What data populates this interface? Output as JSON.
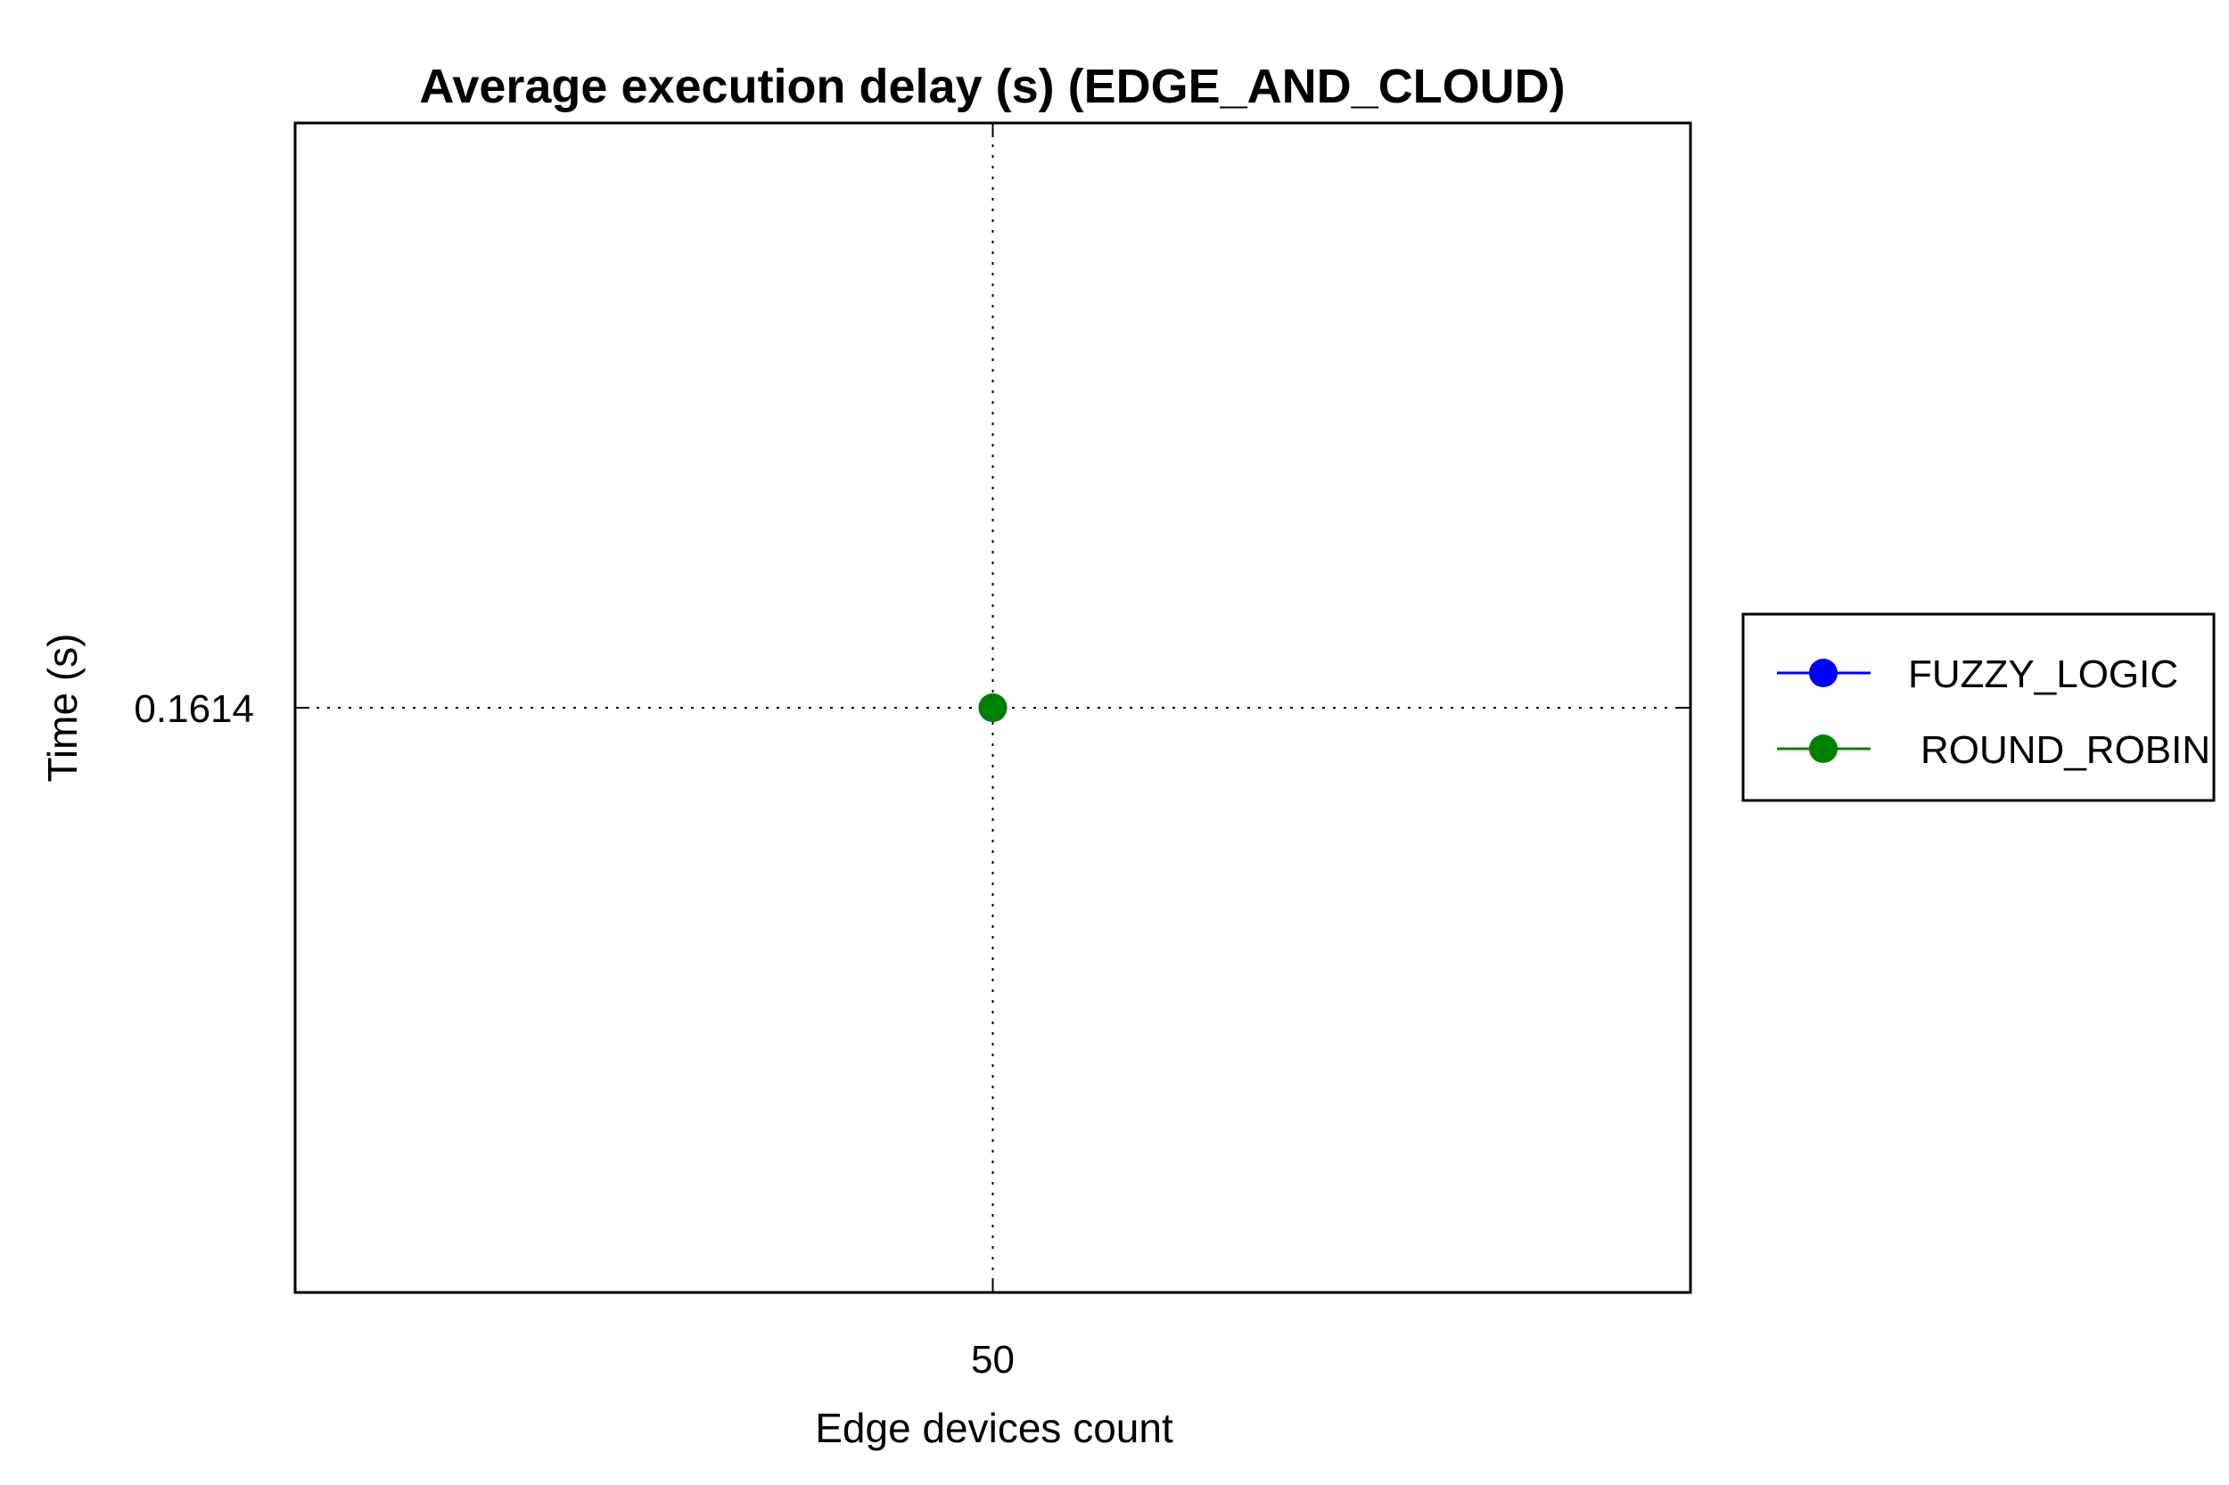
{
  "chart_data": {
    "type": "line",
    "title": "Average execution delay (s) (EDGE_AND_CLOUD)",
    "xlabel": "Edge devices count",
    "ylabel": "Time (s)",
    "x_ticks": [
      "50"
    ],
    "y_ticks": [
      "0.1614"
    ],
    "x": [
      50
    ],
    "xlim": [
      49,
      51
    ],
    "ylim": [
      0.1613,
      0.1615
    ],
    "grid": true,
    "grid_style": "dotted",
    "legend_position": "right",
    "series": [
      {
        "name": "FUZZY_LOGIC",
        "color": "#0000ff",
        "marker": "circle",
        "values": [
          0.1614
        ]
      },
      {
        "name": "ROUND_ROBIN",
        "color": "#008000",
        "marker": "circle",
        "values": [
          0.1614
        ]
      }
    ]
  }
}
